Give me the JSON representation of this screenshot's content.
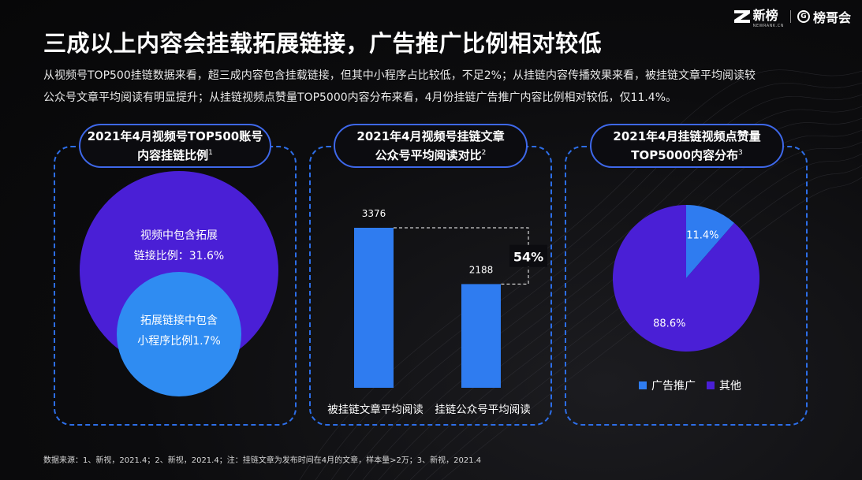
{
  "header": {
    "brand1": "新榜",
    "brand1_sub": "NEWRANK.CN",
    "brand2": "榜哥会",
    "title": "三成以上内容会挂载拓展链接，广告推广比例相对较低",
    "desc_line1": "从视频号TOP500挂链数据来看，超三成内容包含挂载链接，但其中小程序占比较低，不足2%；从挂链内容传播效果来看，被挂链文章平均阅读较",
    "desc_line2": "公众号文章平均阅读有明显提升；从挂链视频点赞量TOP5000内容分布来看，4月份挂链广告推广内容比例相对较低，仅11.4%。"
  },
  "panels": {
    "p1": {
      "title_line1": "2021年4月视频号TOP500账号",
      "title_line2": "内容挂链比例",
      "sup": "1"
    },
    "p2": {
      "title_line1": "2021年4月视频号挂链文章",
      "title_line2": "公众号平均阅读对比",
      "sup": "2"
    },
    "p3": {
      "title_line1": "2021年4月挂链视频点赞量",
      "title_line2": "TOP5000内容分布",
      "sup": "3"
    }
  },
  "chart_data": [
    {
      "type": "nested-circle",
      "outer": {
        "label_line1": "视频中包含拓展",
        "label_line2": "链接比例：31.6%",
        "value": 31.6,
        "color": "#4a1fd6"
      },
      "inner": {
        "label_line1": "拓展链接中包含",
        "label_line2": "小程序比例1.7%",
        "value": 1.7,
        "color": "#2f8cf2"
      }
    },
    {
      "type": "bar",
      "categories": [
        "被挂链文章平均阅读",
        "挂链公众号平均阅读"
      ],
      "values": [
        3376,
        2188
      ],
      "value_labels": [
        "3376",
        "2188"
      ],
      "annotation": "54%",
      "ylim": [
        0,
        3376
      ],
      "color": "#2f7cf0"
    },
    {
      "type": "pie",
      "slices": [
        {
          "name": "广告推广",
          "value": 11.4,
          "label": "11.4%",
          "color": "#2f7cf0"
        },
        {
          "name": "其他",
          "value": 88.6,
          "label": "88.6%",
          "color": "#4a1fd6"
        }
      ],
      "legend": "bottom"
    }
  ],
  "footnote": "数据来源：1、新视，2021.4；2、新视，2021.4；注：挂链文章为发布时间在4月的文章，样本量>2万；3、新视，2021.4"
}
